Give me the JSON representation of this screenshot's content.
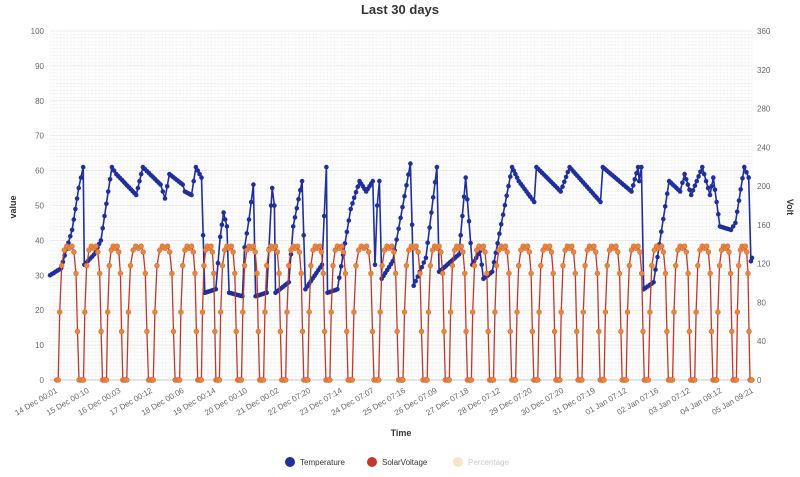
{
  "chart_data": {
    "type": "line",
    "title": "Last 30 days",
    "xlabel": "Time",
    "ylabel_left": "value",
    "ylabel_right": "Volt",
    "ylim_left": [
      0,
      100
    ],
    "ylim_right": [
      0,
      360
    ],
    "yticks_left": [
      "0",
      "10",
      "20",
      "30",
      "40",
      "50",
      "60",
      "70",
      "80",
      "90",
      "100"
    ],
    "yticks_right": [
      "0",
      "40",
      "80",
      "120",
      "160",
      "200",
      "240",
      "280",
      "320",
      "360"
    ],
    "grid": true,
    "legend_position": "bottom",
    "categories": [
      "14 Dec 00:01",
      "15 Dec 00:10",
      "16 Dec 00:03",
      "17 Dec 00:12",
      "18 Dec 00:06",
      "19 Dec 00:14",
      "20 Dec 00:10",
      "21 Dec 00:02",
      "22 Dec 07:20",
      "23 Dec 07:14",
      "24 Dec 07:07",
      "25 Dec 07:16",
      "26 Dec 07:09",
      "27 Dec 07:18",
      "28 Dec 07:12",
      "29 Dec 07:20",
      "30 Dec 07:20",
      "31 Dec 07:19",
      "01 Jan 07:12",
      "02 Jan 07:16",
      "03 Jan 07:12",
      "04 Jan 09:12",
      "05 Jan 09:21"
    ],
    "series": [
      {
        "name": "Temperature",
        "color": "#1f2f9c",
        "axis": "left",
        "hidden": false,
        "points": [
          [
            0,
            30
          ],
          [
            0.5,
            32
          ],
          [
            1,
            43
          ],
          [
            1.3,
            55
          ],
          [
            1.5,
            61
          ],
          [
            1.55,
            33
          ],
          [
            2,
            36
          ],
          [
            2.3,
            40
          ],
          [
            2.8,
            61
          ],
          [
            3,
            59
          ],
          [
            3.9,
            53
          ],
          [
            4.2,
            61
          ],
          [
            5,
            56
          ],
          [
            5.2,
            52
          ],
          [
            5.4,
            59
          ],
          [
            6,
            56
          ],
          [
            6.1,
            54
          ],
          [
            6.4,
            53
          ],
          [
            6.6,
            61
          ],
          [
            6.85,
            58
          ],
          [
            7,
            25
          ],
          [
            7.5,
            26
          ],
          [
            7.7,
            41
          ],
          [
            7.85,
            48
          ],
          [
            8,
            44
          ],
          [
            8.1,
            25
          ],
          [
            8.7,
            24
          ],
          [
            8.8,
            38
          ],
          [
            9,
            46
          ],
          [
            9.2,
            56
          ],
          [
            9.3,
            24
          ],
          [
            9.8,
            25
          ],
          [
            10,
            50
          ],
          [
            10.05,
            55
          ],
          [
            10.15,
            50
          ],
          [
            10.2,
            25
          ],
          [
            10.8,
            28
          ],
          [
            11,
            44
          ],
          [
            11.4,
            57
          ],
          [
            11.55,
            26
          ],
          [
            12.3,
            33
          ],
          [
            12.5,
            61
          ],
          [
            12.55,
            25
          ],
          [
            13,
            26
          ],
          [
            13.6,
            49
          ],
          [
            14,
            57
          ],
          [
            14.3,
            54
          ],
          [
            14.6,
            57
          ],
          [
            14.7,
            33
          ],
          [
            14.8,
            50
          ],
          [
            14.9,
            57
          ],
          [
            15,
            29
          ],
          [
            15.5,
            34
          ],
          [
            16.3,
            62
          ],
          [
            16.45,
            27
          ],
          [
            17,
            35
          ],
          [
            17.5,
            61
          ],
          [
            17.6,
            31
          ],
          [
            18.5,
            36
          ],
          [
            18.8,
            58
          ],
          [
            19.1,
            33
          ],
          [
            19.45,
            37
          ],
          [
            19.6,
            29
          ],
          [
            20,
            31
          ],
          [
            20.9,
            61
          ],
          [
            21.2,
            57
          ],
          [
            21.9,
            51
          ],
          [
            22,
            61
          ],
          [
            23.1,
            54
          ],
          [
            23.5,
            61
          ],
          [
            24.9,
            51
          ],
          [
            25,
            61
          ],
          [
            26.3,
            54
          ],
          [
            26.6,
            61
          ],
          [
            26.65,
            57
          ],
          [
            26.75,
            61
          ],
          [
            26.85,
            26
          ],
          [
            27.3,
            28
          ],
          [
            28,
            57
          ],
          [
            28.5,
            54
          ],
          [
            28.7,
            59
          ],
          [
            29,
            53
          ],
          [
            29.5,
            61
          ],
          [
            29.85,
            53
          ],
          [
            30,
            58
          ],
          [
            30.3,
            44
          ],
          [
            30.8,
            43
          ],
          [
            31,
            45
          ],
          [
            31.4,
            61
          ],
          [
            31.6,
            58
          ],
          [
            31.7,
            34
          ],
          [
            31.75,
            35
          ]
        ]
      },
      {
        "name": "SolarVoltage",
        "color": "#c0392b",
        "axis": "right",
        "hidden": false,
        "cycles": [
          [
            0.3,
            1.45
          ],
          [
            1.45,
            2.5
          ],
          [
            2.5,
            3.4
          ],
          [
            3.4,
            4.6
          ],
          [
            4.6,
            5.8
          ],
          [
            5.8,
            6.8
          ],
          [
            6.8,
            7.6
          ],
          [
            7.6,
            8.6
          ],
          [
            8.6,
            9.6
          ],
          [
            9.6,
            10.6
          ],
          [
            10.6,
            11.6
          ],
          [
            11.6,
            12.6
          ],
          [
            12.6,
            13.6
          ],
          [
            13.6,
            14.8
          ],
          [
            14.8,
            15.9
          ],
          [
            15.9,
            17.0
          ],
          [
            17.0,
            18.0
          ],
          [
            18.0,
            19.0
          ],
          [
            19.0,
            20.0
          ],
          [
            20.0,
            21.0
          ],
          [
            21.0,
            22.0
          ],
          [
            22.0,
            23.0
          ],
          [
            23.0,
            24.0
          ],
          [
            24.0,
            25.0
          ],
          [
            25.0,
            26.0
          ],
          [
            26.0,
            27.0
          ],
          [
            27.0,
            28.1
          ],
          [
            28.1,
            29.1
          ],
          [
            29.1,
            30.1
          ],
          [
            30.1,
            31.0
          ],
          [
            31.0,
            31.75
          ]
        ],
        "night_value": 0,
        "peak_value": 138
      },
      {
        "name": "Percentage",
        "color": "#f5e7c6",
        "axis": "left",
        "hidden": true
      }
    ]
  }
}
